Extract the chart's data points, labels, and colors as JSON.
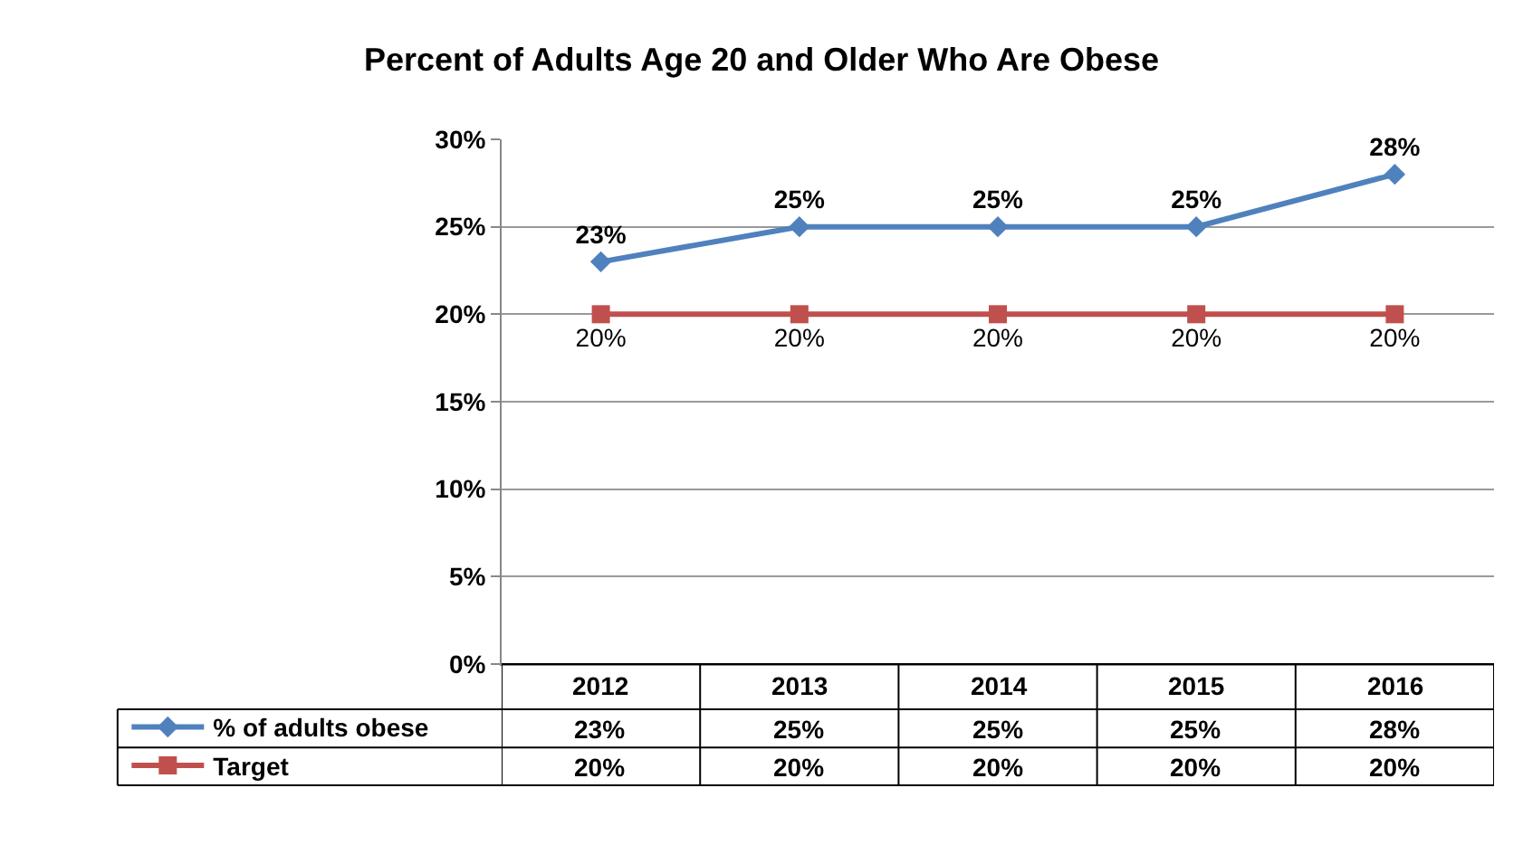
{
  "chart_data": {
    "type": "line",
    "title": "Percent of Adults Age 20 and Older Who Are Obese",
    "categories": [
      "2012",
      "2013",
      "2014",
      "2015",
      "2016"
    ],
    "series": [
      {
        "name": "% of adults obese",
        "color": "#4f81bd",
        "marker": "diamond",
        "values": [
          23,
          25,
          25,
          25,
          28
        ],
        "value_labels": [
          "23%",
          "25%",
          "25%",
          "25%",
          "28%"
        ]
      },
      {
        "name": "Target",
        "color": "#c0504d",
        "marker": "square",
        "values": [
          20,
          20,
          20,
          20,
          20
        ],
        "value_labels": [
          "20%",
          "20%",
          "20%",
          "20%",
          "20%"
        ]
      }
    ],
    "ylim": [
      0,
      30
    ],
    "yticks": [
      {
        "value": 0,
        "label": "0%"
      },
      {
        "value": 5,
        "label": "5%"
      },
      {
        "value": 10,
        "label": "10%"
      },
      {
        "value": 15,
        "label": "15%"
      },
      {
        "value": 20,
        "label": "20%"
      },
      {
        "value": 25,
        "label": "25%"
      },
      {
        "value": 30,
        "label": "30%"
      }
    ],
    "grid": "y",
    "legend": "bottom left",
    "tick_labels": "y",
    "line_style": "solid"
  }
}
